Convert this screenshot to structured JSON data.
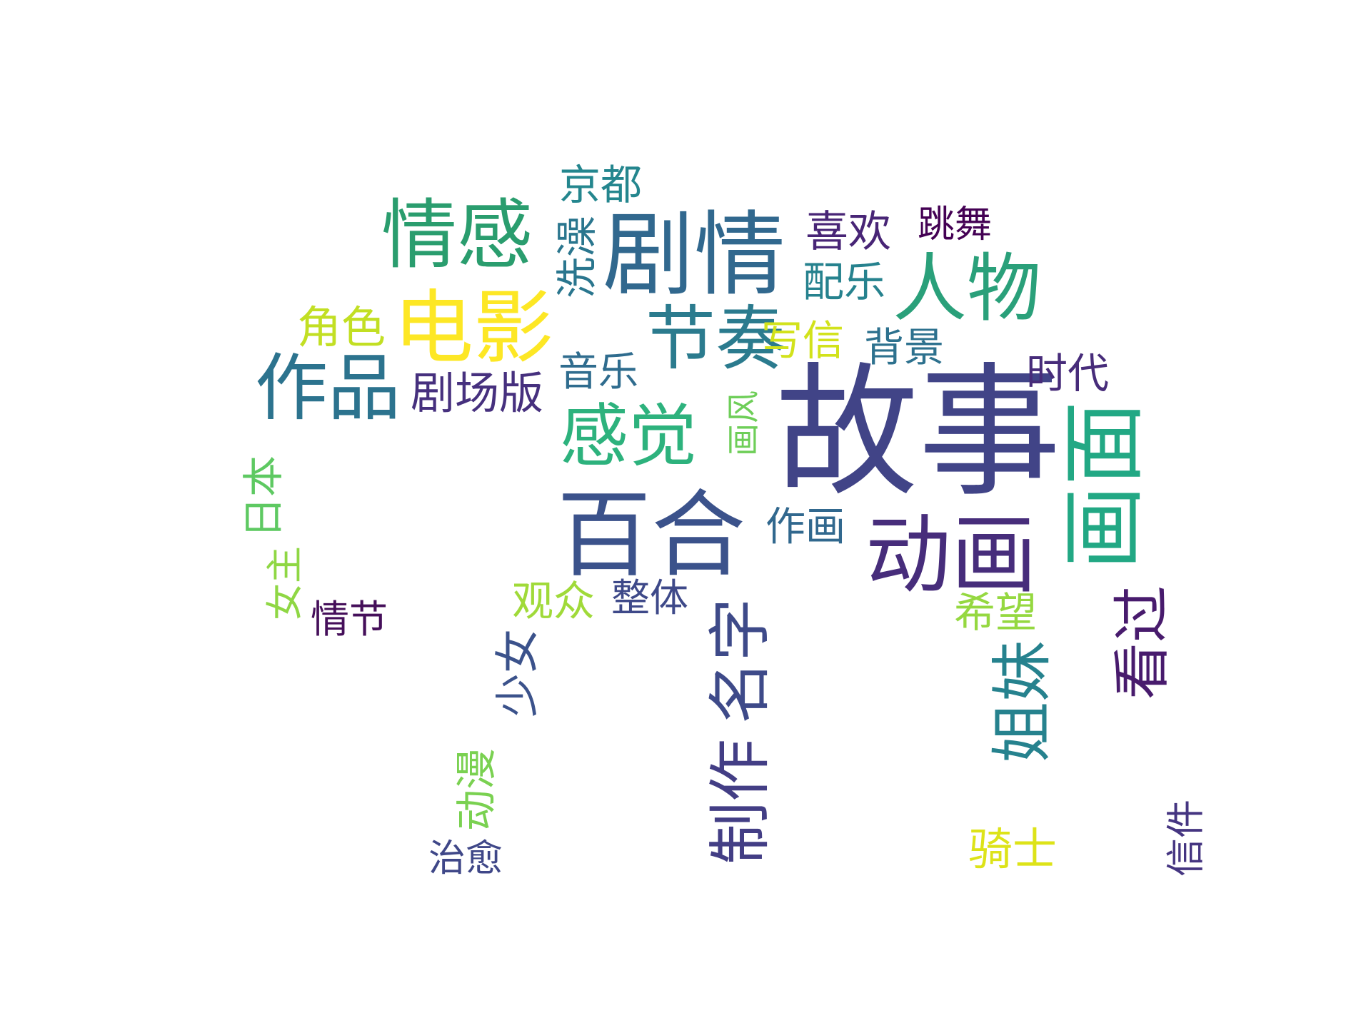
{
  "word_cloud": {
    "words": [
      {
        "text": "故事",
        "color": "#414487"
      },
      {
        "text": "百合",
        "color": "#3b528b"
      },
      {
        "text": "剧情",
        "color": "#31688e"
      },
      {
        "text": "动画",
        "color": "#472d7b"
      },
      {
        "text": "画面",
        "color": "#22a884"
      },
      {
        "text": "电影",
        "color": "#fde725"
      },
      {
        "text": "情感",
        "color": "#2a9d6e"
      },
      {
        "text": "人物",
        "color": "#2aa07a"
      },
      {
        "text": "节奏",
        "color": "#2b7b8e"
      },
      {
        "text": "作品",
        "color": "#2c738e"
      },
      {
        "text": "感觉",
        "color": "#2db27d"
      },
      {
        "text": "制作",
        "color": "#433e85"
      },
      {
        "text": "名字",
        "color": "#3e4a89"
      },
      {
        "text": "姐妹",
        "color": "#26828e"
      },
      {
        "text": "看过",
        "color": "#481b6d"
      },
      {
        "text": "京都",
        "color": "#24868e"
      },
      {
        "text": "洗澡",
        "color": "#2a768e"
      },
      {
        "text": "喜欢",
        "color": "#482576"
      },
      {
        "text": "跳舞",
        "color": "#440154"
      },
      {
        "text": "配乐",
        "color": "#26828e"
      },
      {
        "text": "角色",
        "color": "#c2df23"
      },
      {
        "text": "写信",
        "color": "#d2e21b"
      },
      {
        "text": "背景",
        "color": "#2d718e"
      },
      {
        "text": "音乐",
        "color": "#2f6c8e"
      },
      {
        "text": "剧场版",
        "color": "#46307e"
      },
      {
        "text": "时代",
        "color": "#472c7a"
      },
      {
        "text": "画风",
        "color": "#6ece58"
      },
      {
        "text": "作画",
        "color": "#31688e"
      },
      {
        "text": "日本",
        "color": "#5ec962"
      },
      {
        "text": "女主",
        "color": "#8fd744"
      },
      {
        "text": "情节",
        "color": "#450f5a"
      },
      {
        "text": "观众",
        "color": "#a0da39"
      },
      {
        "text": "整体",
        "color": "#3e4989"
      },
      {
        "text": "希望",
        "color": "#95d840"
      },
      {
        "text": "少女",
        "color": "#3b528b"
      },
      {
        "text": "动漫",
        "color": "#7ad151"
      },
      {
        "text": "治愈",
        "color": "#3f4788"
      },
      {
        "text": "骑士",
        "color": "#dde318"
      },
      {
        "text": "信件",
        "color": "#453581"
      }
    ]
  }
}
